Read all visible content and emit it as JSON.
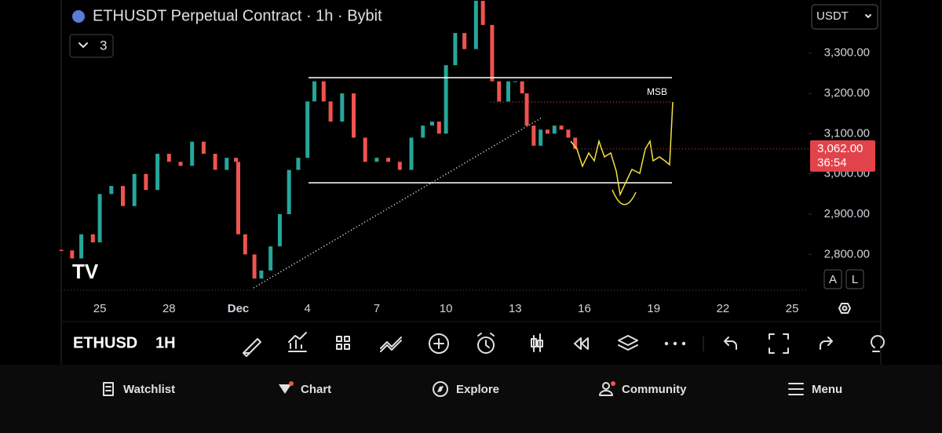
{
  "header": {
    "title": "ETHUSDT Perpetual Contract · 1h · Bybit",
    "indicator_count": "3",
    "currency": "USDT"
  },
  "chart_data": {
    "type": "candlestick",
    "x": [
      -1.67,
      -1.2,
      -0.8,
      -0.3,
      0,
      0.5,
      1,
      1.5,
      2,
      2.5,
      3,
      3.5,
      4,
      4.5,
      5,
      5.5,
      5.9,
      6,
      6.3,
      6.7,
      7,
      7.4,
      7.8,
      8.2,
      8.6,
      9,
      9.3,
      9.7,
      10,
      10.5,
      11,
      11.5,
      12,
      12.5,
      13,
      13.5,
      14,
      14.4,
      14.7,
      15,
      15.4,
      15.8,
      16.3,
      16.6,
      17,
      17.3,
      17.7,
      18,
      18.3,
      18.5,
      18.8,
      19.1,
      19.4,
      19.7,
      20,
      20.3,
      20.6
    ],
    "values": [
      2810,
      2790,
      2850,
      2830,
      2950,
      2970,
      2920,
      3000,
      2960,
      3050,
      3030,
      3020,
      3080,
      3050,
      3010,
      3040,
      3030,
      2850,
      2800,
      2740,
      2760,
      2820,
      2900,
      3010,
      3040,
      3180,
      3230,
      3180,
      3130,
      3200,
      3090,
      3030,
      3040,
      3030,
      3010,
      3090,
      3120,
      3130,
      3100,
      3270,
      3350,
      3310,
      3430,
      3370,
      3230,
      3180,
      3230,
      3230,
      3200,
      3120,
      3070,
      3110,
      3100,
      3120,
      3110,
      3090,
      3062
    ],
    "up_color": "#26a69a",
    "down_color": "#ef5350",
    "xlim": [
      -1.67,
      30.71
    ],
    "xticks": [
      {
        "value": 0,
        "label": "25"
      },
      {
        "value": 3,
        "label": "28"
      },
      {
        "value": 6,
        "label": "Dec"
      },
      {
        "value": 9,
        "label": "4"
      },
      {
        "value": 12,
        "label": "7"
      },
      {
        "value": 15,
        "label": "10"
      },
      {
        "value": 18,
        "label": "13"
      },
      {
        "value": 21,
        "label": "16"
      },
      {
        "value": 24,
        "label": "19"
      },
      {
        "value": 27,
        "label": "22"
      },
      {
        "value": 30,
        "label": "25"
      }
    ],
    "ylim": [
      2711,
      3432
    ],
    "yticks": [
      {
        "value": 2800,
        "label": "2,800.00"
      },
      {
        "value": 2900,
        "label": "2,900.00"
      },
      {
        "value": 3000,
        "label": "3,000.00"
      },
      {
        "value": 3100,
        "label": "3,100.00"
      },
      {
        "value": 3200,
        "label": "3,200.00"
      },
      {
        "value": 3300,
        "label": "3,300.00"
      }
    ],
    "last_price": {
      "value": 3062,
      "label": "3,062.00"
    },
    "countdown": "36:54",
    "annotation": "MSB",
    "scale_buttons": [
      "A",
      "L"
    ]
  },
  "toolbar": {
    "symbol": "ETHUSD",
    "interval": "1H"
  },
  "nav": [
    "Watchlist",
    "Chart",
    "Explore",
    "Community",
    "Menu"
  ]
}
